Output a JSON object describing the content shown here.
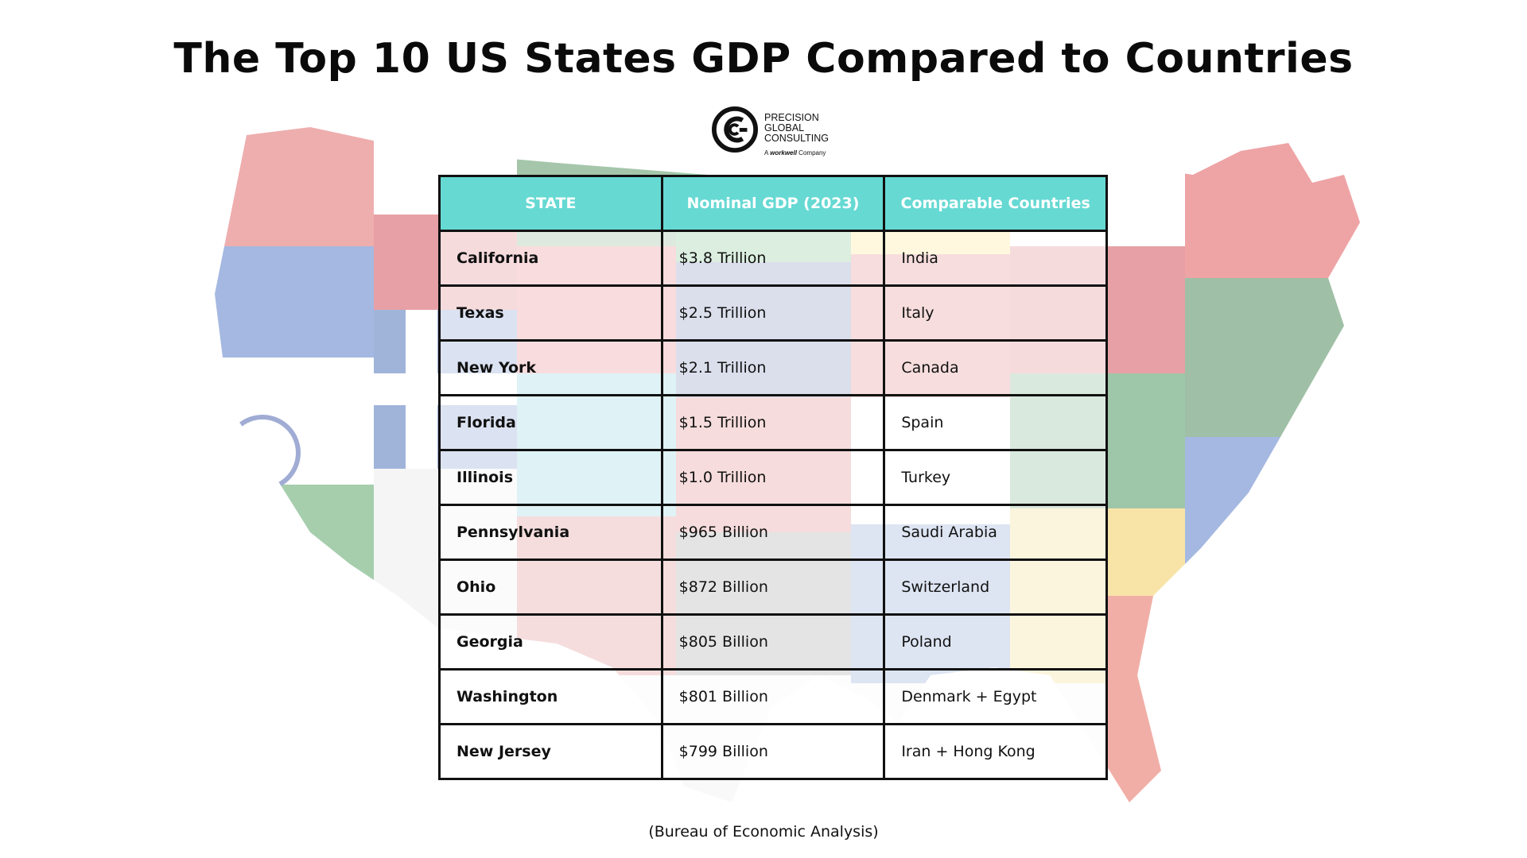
{
  "title": "The Top 10 US States GDP Compared to Countries",
  "logo": {
    "line1": "PRECISION",
    "line2": "GLOBAL",
    "line3": "CONSULTING",
    "sub_prefix": "A",
    "sub_brand": "workwell",
    "sub_suffix": "Company"
  },
  "table": {
    "headers": [
      "STATE",
      "Nominal GDP (2023)",
      "Comparable Countries"
    ],
    "rows": [
      {
        "state": "California",
        "gdp": "$3.8 Trillion",
        "country": "India"
      },
      {
        "state": "Texas",
        "gdp": "$2.5 Trillion",
        "country": "Italy"
      },
      {
        "state": "New York",
        "gdp": "$2.1 Trillion",
        "country": "Canada"
      },
      {
        "state": "Florida",
        "gdp": "$1.5 Trillion",
        "country": "Spain"
      },
      {
        "state": "Illinois",
        "gdp": "$1.0 Trillion",
        "country": "Turkey"
      },
      {
        "state": "Pennsylvania",
        "gdp": "$965 Billion",
        "country": "Saudi Arabia"
      },
      {
        "state": "Ohio",
        "gdp": "$872 Billion",
        "country": "Switzerland"
      },
      {
        "state": "Georgia",
        "gdp": "$805 Billion",
        "country": "Poland"
      },
      {
        "state": "Washington",
        "gdp": "$801 Billion",
        "country": "Denmark + Egypt"
      },
      {
        "state": "New Jersey",
        "gdp": "$799 Billion",
        "country": "Iran + Hong Kong"
      }
    ]
  },
  "source": "(Bureau of Economic Analysis)",
  "colors": {
    "header_bg": "#66d9d3",
    "header_text": "#ffffff",
    "border": "#111111"
  }
}
